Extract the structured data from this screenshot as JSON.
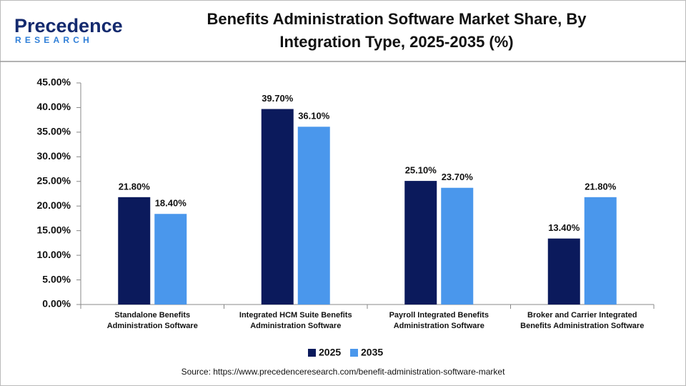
{
  "logo": {
    "name": "Precedence",
    "tagline": "RESEARCH"
  },
  "chart_data": {
    "type": "bar",
    "title": "Benefits Administration Software Market Share, By\nIntegration Type, 2025-2035 (%)",
    "categories": [
      "Standalone Benefits\nAdministration Software",
      "Integrated HCM Suite Benefits\nAdministration Software",
      "Payroll Integrated Benefits\nAdministration Software",
      "Broker and Carrier Integrated\nBenefits Administration Software"
    ],
    "series": [
      {
        "name": "2025",
        "color": "#0b1a5c",
        "values": [
          21.8,
          39.7,
          25.1,
          13.4
        ],
        "value_labels": [
          "21.80%",
          "39.70%",
          "25.10%",
          "13.40%"
        ]
      },
      {
        "name": "2035",
        "color": "#4a97ec",
        "values": [
          18.4,
          36.1,
          23.7,
          21.8
        ],
        "value_labels": [
          "18.40%",
          "36.10%",
          "23.70%",
          "21.80%"
        ]
      }
    ],
    "ylim": [
      0,
      45
    ],
    "yticks": [
      {
        "value": 0,
        "label": "0.00%"
      },
      {
        "value": 5,
        "label": "5.00%"
      },
      {
        "value": 10,
        "label": "10.00%"
      },
      {
        "value": 15,
        "label": "15.00%"
      },
      {
        "value": 20,
        "label": "20.00%"
      },
      {
        "value": 25,
        "label": "25.00%"
      },
      {
        "value": 30,
        "label": "30.00%"
      },
      {
        "value": 35,
        "label": "35.00%"
      },
      {
        "value": 40,
        "label": "40.00%"
      },
      {
        "value": 45,
        "label": "45.00%"
      }
    ],
    "grid": false,
    "legend": "bottom",
    "source": "Source: https://www.precedenceresearch.com/benefit-administration-software-market"
  }
}
